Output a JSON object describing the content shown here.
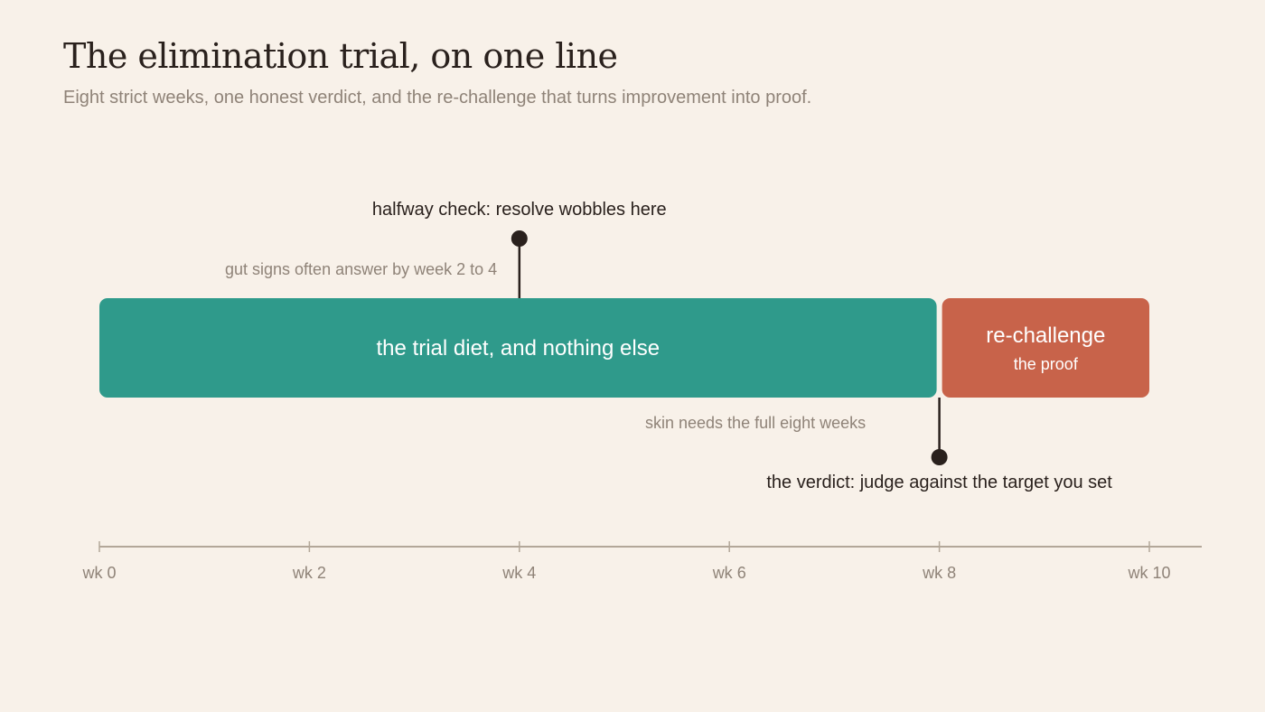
{
  "header": {
    "title": "The elimination trial, on one line",
    "subtitle": "Eight strict weeks, one honest verdict, and the re-challenge that turns improvement into proof."
  },
  "colors": {
    "background": "#f8f1e9",
    "trial": "#2f9a8b",
    "rechallenge": "#c8634a",
    "ink": "#2a211d",
    "muted": "#8f8378",
    "axis": "#b3a799"
  },
  "axis": {
    "min_week": 0,
    "max_week": 10,
    "ticks": [
      {
        "week": 0,
        "label": "wk 0"
      },
      {
        "week": 2,
        "label": "wk 2"
      },
      {
        "week": 4,
        "label": "wk 4"
      },
      {
        "week": 6,
        "label": "wk 6"
      },
      {
        "week": 8,
        "label": "wk 8"
      },
      {
        "week": 10,
        "label": "wk 10"
      }
    ]
  },
  "phases": {
    "trial": {
      "start_week": 0,
      "end_week": 8,
      "label": "the trial diet, and nothing else"
    },
    "rechallenge": {
      "start_week": 8,
      "end_week": 10,
      "label": "re-challenge",
      "sublabel": "the proof"
    }
  },
  "callouts": {
    "halfway": {
      "week": 4,
      "label": "halfway check: resolve wobbles here"
    },
    "verdict": {
      "week": 8,
      "label": "the verdict: judge against the target you set"
    }
  },
  "notes": {
    "gut": "gut signs often answer by week 2 to 4",
    "skin": "skin needs the full eight weeks"
  }
}
